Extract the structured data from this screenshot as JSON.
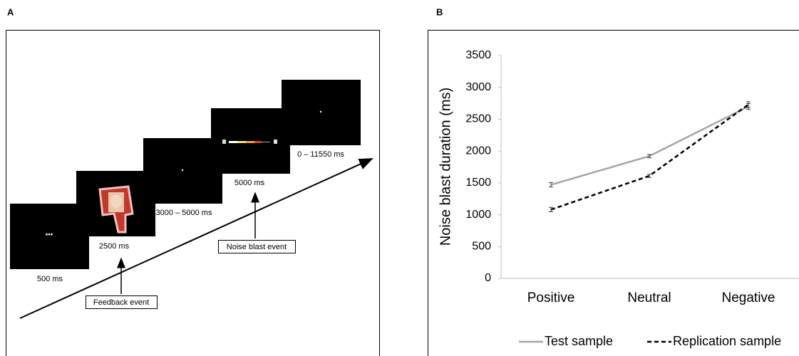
{
  "panel_a": {
    "label": "A",
    "screens": [
      {
        "duration": "500 ms"
      },
      {
        "duration": "2500 ms"
      },
      {
        "duration": "3000 – 5000 ms"
      },
      {
        "duration": "5000 ms"
      },
      {
        "duration": "0 – 11550 ms"
      }
    ],
    "events": [
      "Feedback event",
      "Noise blast event"
    ]
  },
  "panel_b": {
    "label": "B"
  },
  "chart_data": {
    "type": "line",
    "ylabel": "Noise blast duration (ms)",
    "categories": [
      "Positive",
      "Neutral",
      "Negative"
    ],
    "ylim": [
      0,
      3500
    ],
    "yticks": [
      0,
      500,
      1000,
      1500,
      2000,
      2500,
      3000,
      3500
    ],
    "grid": false,
    "legend": "bottom",
    "series": [
      {
        "name": "Test sample",
        "color": "#a6a6a6",
        "dash": false,
        "values": [
          1470,
          1920,
          2700
        ],
        "errors": [
          35,
          25,
          45
        ]
      },
      {
        "name": "Replication sample",
        "color": "#000000",
        "dash": true,
        "values": [
          1080,
          1610,
          2730
        ],
        "errors": [
          35,
          25,
          45
        ]
      }
    ]
  }
}
